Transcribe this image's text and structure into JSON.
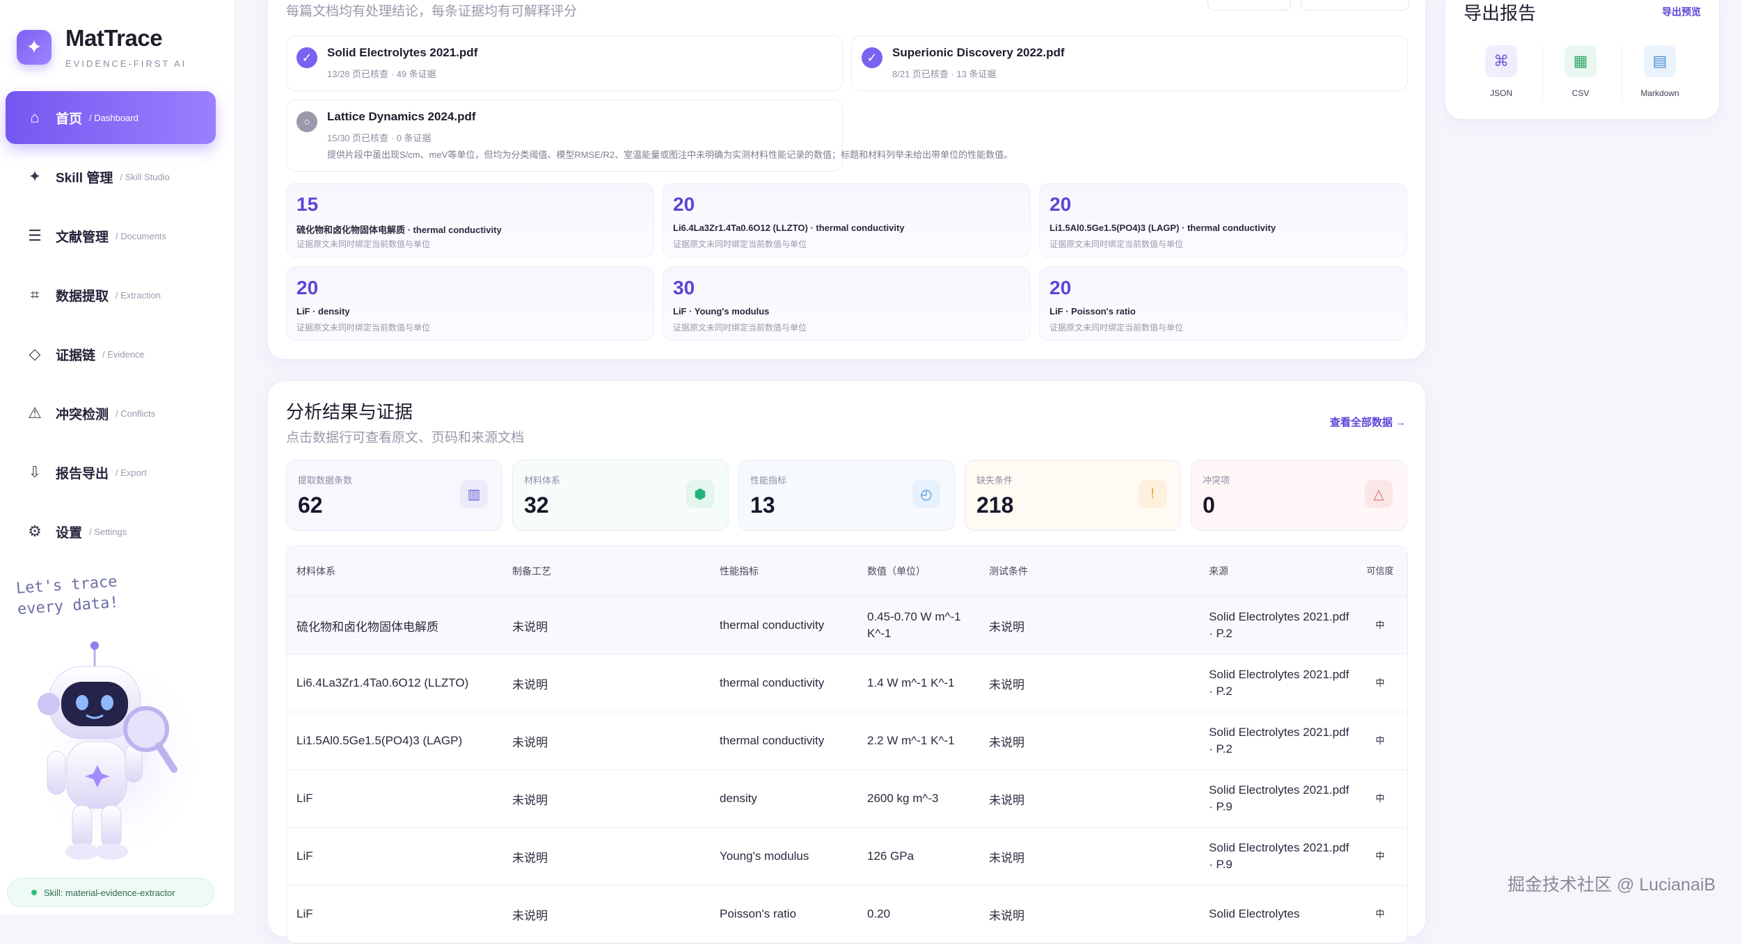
{
  "brand": {
    "name": "MatTrace",
    "subtitle": "EVIDENCE-FIRST AI"
  },
  "nav": [
    {
      "icon": "home-icon",
      "glyph": "⌂",
      "label": "首页",
      "sub": "/ Dashboard",
      "active": true
    },
    {
      "icon": "sparkle-icon",
      "glyph": "✦",
      "label": "Skill 管理",
      "sub": "/ Skill Studio"
    },
    {
      "icon": "document-list-icon",
      "glyph": "☰",
      "label": "文献管理",
      "sub": "/ Documents"
    },
    {
      "icon": "crop-icon",
      "glyph": "⌗",
      "label": "数据提取",
      "sub": "/ Extraction"
    },
    {
      "icon": "diamond-icon",
      "glyph": "◇",
      "label": "证据链",
      "sub": "/ Evidence"
    },
    {
      "icon": "warning-icon",
      "glyph": "⚠",
      "label": "冲突检测",
      "sub": "/ Conflicts"
    },
    {
      "icon": "download-icon",
      "glyph": "⇩",
      "label": "报告导出",
      "sub": "/ Export"
    },
    {
      "icon": "gear-icon",
      "glyph": "⚙",
      "label": "设置",
      "sub": "/ Settings"
    }
  ],
  "tagline": {
    "line1": "Let's trace",
    "line2": "every data!"
  },
  "skill_status": "Skill: material-evidence-extractor",
  "top": {
    "note": "每篇文档均有处理结论，每条证据均有可解释评分",
    "documents": [
      {
        "title": "Solid Electrolytes 2021.pdf",
        "meta": "13/28 页已核查 · 49 条证据",
        "status": "done"
      },
      {
        "title": "Superionic Discovery 2022.pdf",
        "meta": "8/21 页已核查 · 13 条证据",
        "status": "done"
      },
      {
        "title": "Lattice Dynamics 2024.pdf",
        "meta": "15/30 页已核查 · 0 条证据",
        "status": "pending",
        "extra": "提供片段中虽出现S/cm、meV等单位，但均为分类阈值、模型RMSE/R2、室温能量或图注中未明确为实测材料性能记录的数值；标题和材料列举未给出带单位的性能数值。"
      }
    ],
    "stats": [
      {
        "count": "15",
        "title": "硫化物和卤化物固体电解质 · thermal conductivity",
        "desc": "证据原文未同时绑定当前数值与单位"
      },
      {
        "count": "20",
        "title": "Li6.4La3Zr1.4Ta0.6O12 (LLZTO) · thermal conductivity",
        "desc": "证据原文未同时绑定当前数值与单位"
      },
      {
        "count": "20",
        "title": "Li1.5Al0.5Ge1.5(PO4)3 (LAGP) · thermal conductivity",
        "desc": "证据原文未同时绑定当前数值与单位"
      },
      {
        "count": "20",
        "title": "LiF · density",
        "desc": "证据原文未同时绑定当前数值与单位"
      },
      {
        "count": "30",
        "title": "LiF · Young's modulus",
        "desc": "证据原文未同时绑定当前数值与单位"
      },
      {
        "count": "20",
        "title": "LiF · Poisson's ratio",
        "desc": "证据原文未同时绑定当前数值与单位"
      }
    ]
  },
  "export": {
    "title": "导出报告",
    "preview_link": "导出预览",
    "formats": [
      {
        "label": "JSON",
        "icon": "command-icon",
        "glyph": "⌘",
        "color": "#6a5fd6",
        "bg": "#f0eefc"
      },
      {
        "label": "CSV",
        "icon": "table-grid-icon",
        "glyph": "▦",
        "color": "#2fa86a",
        "bg": "#e9f7f0"
      },
      {
        "label": "Markdown",
        "icon": "text-doc-icon",
        "glyph": "▤",
        "color": "#4a8ed8",
        "bg": "#eaf3fc"
      }
    ]
  },
  "analysis": {
    "title": "分析结果与证据",
    "subtitle": "点击数据行可查看原文、页码和来源文档",
    "view_all": "查看全部数据 →",
    "metrics": [
      {
        "label": "提取数据条数",
        "value": "62",
        "icon": "columns-icon",
        "glyph": "▥",
        "color": "#6f63d9",
        "bg": "#ecebfa",
        "tint": "#f7f7fe"
      },
      {
        "label": "材料体系",
        "value": "32",
        "icon": "cube-icon",
        "glyph": "⬢",
        "color": "#23b27c",
        "bg": "#e3f6ee",
        "tint": "#f6fcf9"
      },
      {
        "label": "性能指标",
        "value": "13",
        "icon": "gauge-icon",
        "glyph": "◴",
        "color": "#3a8fd6",
        "bg": "#e6f1fb",
        "tint": "#f6fafe"
      },
      {
        "label": "缺失条件",
        "value": "218",
        "icon": "alert-icon",
        "glyph": "!",
        "color": "#e8a23a",
        "bg": "#fdf0dc",
        "tint": "#fffaf3"
      },
      {
        "label": "冲突项",
        "value": "0",
        "icon": "warning-triangle-icon",
        "glyph": "△",
        "color": "#e06a6a",
        "bg": "#fbe6e6",
        "tint": "#fff7f7"
      }
    ],
    "columns": [
      "材料体系",
      "制备工艺",
      "性能指标",
      "数值（单位）",
      "测试条件",
      "来源",
      "可信度"
    ],
    "rows": [
      {
        "material": "硫化物和卤化物固体电解质",
        "process": "未说明",
        "property": "thermal conductivity",
        "value": "0.45-0.70 W m^-1 K^-1",
        "condition": "未说明",
        "source": "Solid Electrolytes 2021.pdf · P.2",
        "confidence": "中"
      },
      {
        "material": "Li6.4La3Zr1.4Ta0.6O12 (LLZTO)",
        "process": "未说明",
        "property": "thermal conductivity",
        "value": "1.4 W m^-1 K^-1",
        "condition": "未说明",
        "source": "Solid Electrolytes 2021.pdf · P.2",
        "confidence": "中"
      },
      {
        "material": "Li1.5Al0.5Ge1.5(PO4)3 (LAGP)",
        "process": "未说明",
        "property": "thermal conductivity",
        "value": "2.2 W m^-1 K^-1",
        "condition": "未说明",
        "source": "Solid Electrolytes 2021.pdf · P.2",
        "confidence": "中"
      },
      {
        "material": "LiF",
        "process": "未说明",
        "property": "density",
        "value": "2600 kg m^-3",
        "condition": "未说明",
        "source": "Solid Electrolytes 2021.pdf · P.9",
        "confidence": "中"
      },
      {
        "material": "LiF",
        "process": "未说明",
        "property": "Young's modulus",
        "value": "126 GPa",
        "condition": "未说明",
        "source": "Solid Electrolytes 2021.pdf · P.9",
        "confidence": "中"
      },
      {
        "material": "LiF",
        "process": "未说明",
        "property": "Poisson's ratio",
        "value": "0.20",
        "condition": "未说明",
        "source": "Solid Electrolytes",
        "confidence": "中"
      }
    ]
  },
  "watermark": "掘金技术社区 @ LucianaiB"
}
